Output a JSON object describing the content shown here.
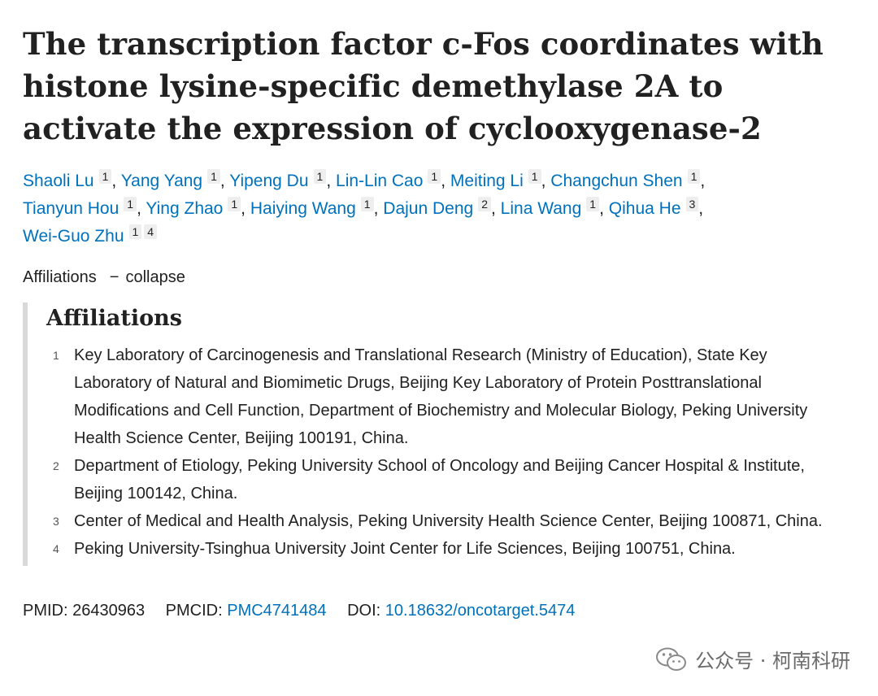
{
  "title": "The transcription factor c-Fos coordinates with histone lysine-specific demethylase 2A to activate the expression of cyclooxygenase-2",
  "authors": [
    {
      "name": "Shaoli Lu",
      "sup": "1",
      "sep": ","
    },
    {
      "name": "Yang Yang",
      "sup": "1",
      "sep": ","
    },
    {
      "name": "Yipeng Du",
      "sup": "1",
      "sep": ","
    },
    {
      "name": "Lin-Lin Cao",
      "sup": "1",
      "sep": ","
    },
    {
      "name": "Meiting Li",
      "sup": "1",
      "sep": ","
    },
    {
      "name": "Changchun Shen",
      "sup": "1",
      "sep": ","
    },
    {
      "name": "Tianyun Hou",
      "sup": "1",
      "sep": ","
    },
    {
      "name": "Ying Zhao",
      "sup": "1",
      "sep": ","
    },
    {
      "name": "Haiying Wang",
      "sup": "1",
      "sep": ","
    },
    {
      "name": "Dajun Deng",
      "sup": "2",
      "sep": ","
    },
    {
      "name": "Lina Wang",
      "sup": "1",
      "sep": ","
    },
    {
      "name": "Qihua He",
      "sup": "3",
      "sep": ","
    },
    {
      "name": "Wei-Guo Zhu",
      "sup": "1",
      "sup2": "4",
      "sep": ""
    }
  ],
  "affiliations_toggle": {
    "label": "Affiliations",
    "dash": "−",
    "action": "collapse"
  },
  "affiliations_heading": "Affiliations",
  "affiliations": [
    {
      "num": "1",
      "text": "Key Laboratory of Carcinogenesis and Translational Research (Ministry of Education), State Key Laboratory of Natural and Biomimetic Drugs, Beijing Key Laboratory of Protein Posttranslational Modifications and Cell Function, Department of Biochemistry and Molecular Biology, Peking University Health Science Center, Beijing 100191, China."
    },
    {
      "num": "2",
      "text": "Department of Etiology, Peking University School of Oncology and Beijing Cancer Hospital & Institute, Beijing 100142, China."
    },
    {
      "num": "3",
      "text": "Center of Medical and Health Analysis, Peking University Health Science Center, Beijing 100871, China."
    },
    {
      "num": "4",
      "text": "Peking University-Tsinghua University Joint Center for Life Sciences, Beijing 100751, China."
    }
  ],
  "ids": {
    "pmid_label": "PMID:",
    "pmid": "26430963",
    "pmcid_label": "PMCID:",
    "pmcid": "PMC4741484",
    "doi_label": "DOI:",
    "doi": "10.18632/oncotarget.5474"
  },
  "watermark": {
    "icon": "wechat-icon",
    "text": "公众号 · 柯南科研"
  },
  "colors": {
    "link": "#0071bc",
    "text": "#212121",
    "sup_bg": "#eeeeee",
    "border": "#d9d9d9"
  }
}
